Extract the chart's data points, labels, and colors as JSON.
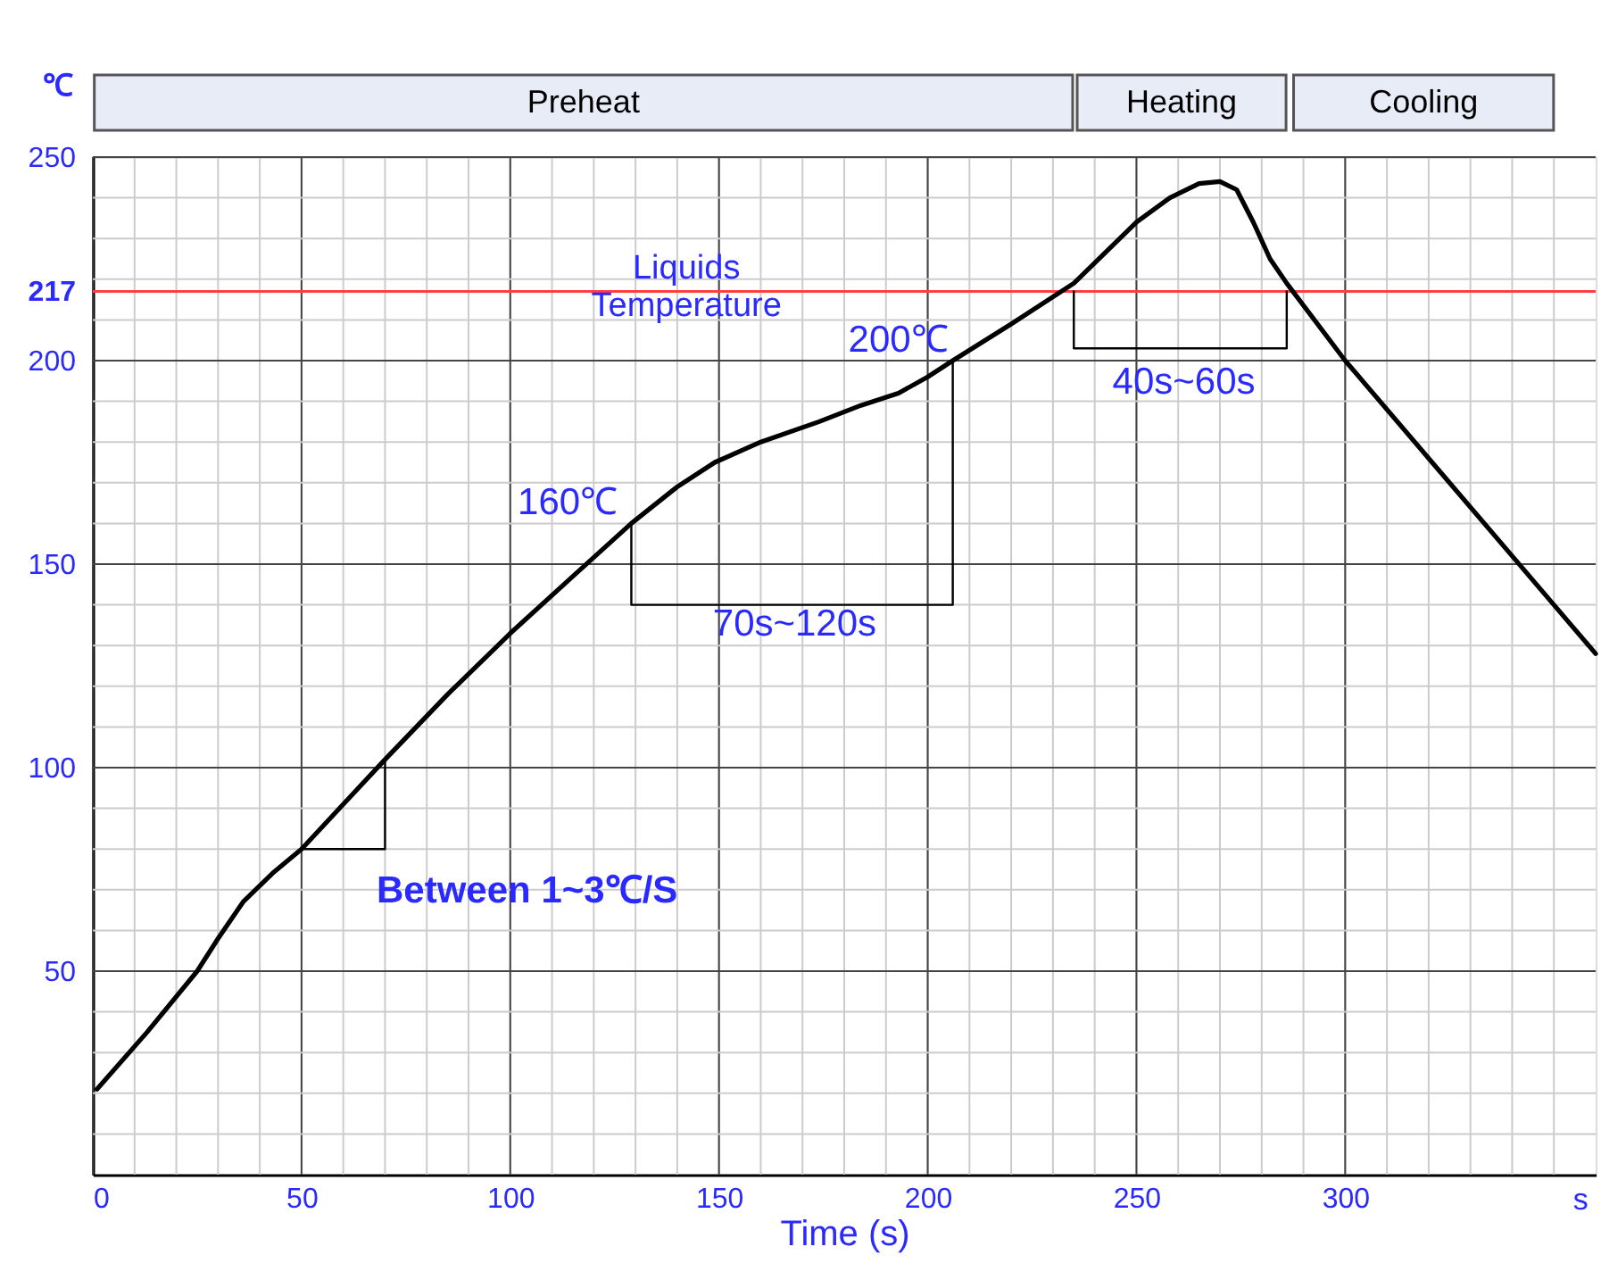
{
  "chart_data": {
    "type": "line",
    "xlabel": "Time (s)",
    "ylabel": "℃",
    "xlim": [
      0,
      360
    ],
    "ylim": [
      0,
      250
    ],
    "xticks": [
      0,
      50,
      100,
      150,
      200,
      250,
      300
    ],
    "yticks": [
      50,
      100,
      150,
      200,
      217,
      250
    ],
    "grid": true,
    "marker": "none",
    "line_style": "solid",
    "series": [
      {
        "type": "line",
        "color": "#000000",
        "x": [
          1,
          13,
          25,
          30,
          36,
          43,
          50,
          60,
          70,
          85,
          100,
          115,
          129,
          140,
          149,
          160,
          174,
          184,
          193,
          200,
          206,
          220,
          235,
          243,
          250,
          258,
          265,
          270,
          274,
          278,
          282,
          286,
          300,
          320,
          340,
          350,
          360
        ],
        "values": [
          21,
          35,
          50,
          58,
          67,
          74,
          80,
          91,
          102,
          118,
          133,
          147,
          160,
          169,
          175,
          180,
          185,
          189,
          192,
          196,
          200,
          209,
          219,
          227,
          234,
          240,
          243.5,
          244,
          242,
          234,
          225,
          219,
          200,
          176,
          152,
          140,
          128
        ]
      },
      {
        "type": "line",
        "color": "#000000",
        "x": [
          129,
          129,
          206,
          206
        ],
        "values": [
          160,
          140,
          140,
          200
        ]
      },
      {
        "type": "line",
        "color": "#000000",
        "x": [
          235,
          235,
          286,
          286
        ],
        "values": [
          217,
          203,
          203,
          217
        ]
      },
      {
        "type": "line",
        "color": "#000000",
        "x": [
          50,
          70,
          70
        ],
        "values": [
          80,
          80,
          102
        ]
      }
    ],
    "ref_lines": [
      {
        "axis": "y",
        "value": 217,
        "label": "Liquids\nTemperature",
        "color": "#ff4040"
      }
    ],
    "annotations": [
      "Preheat",
      "Heating",
      "Cooling",
      "160℃",
      "200℃",
      "70s~120s",
      "40s~60s",
      "Between 1~3℃/S",
      "s"
    ]
  }
}
